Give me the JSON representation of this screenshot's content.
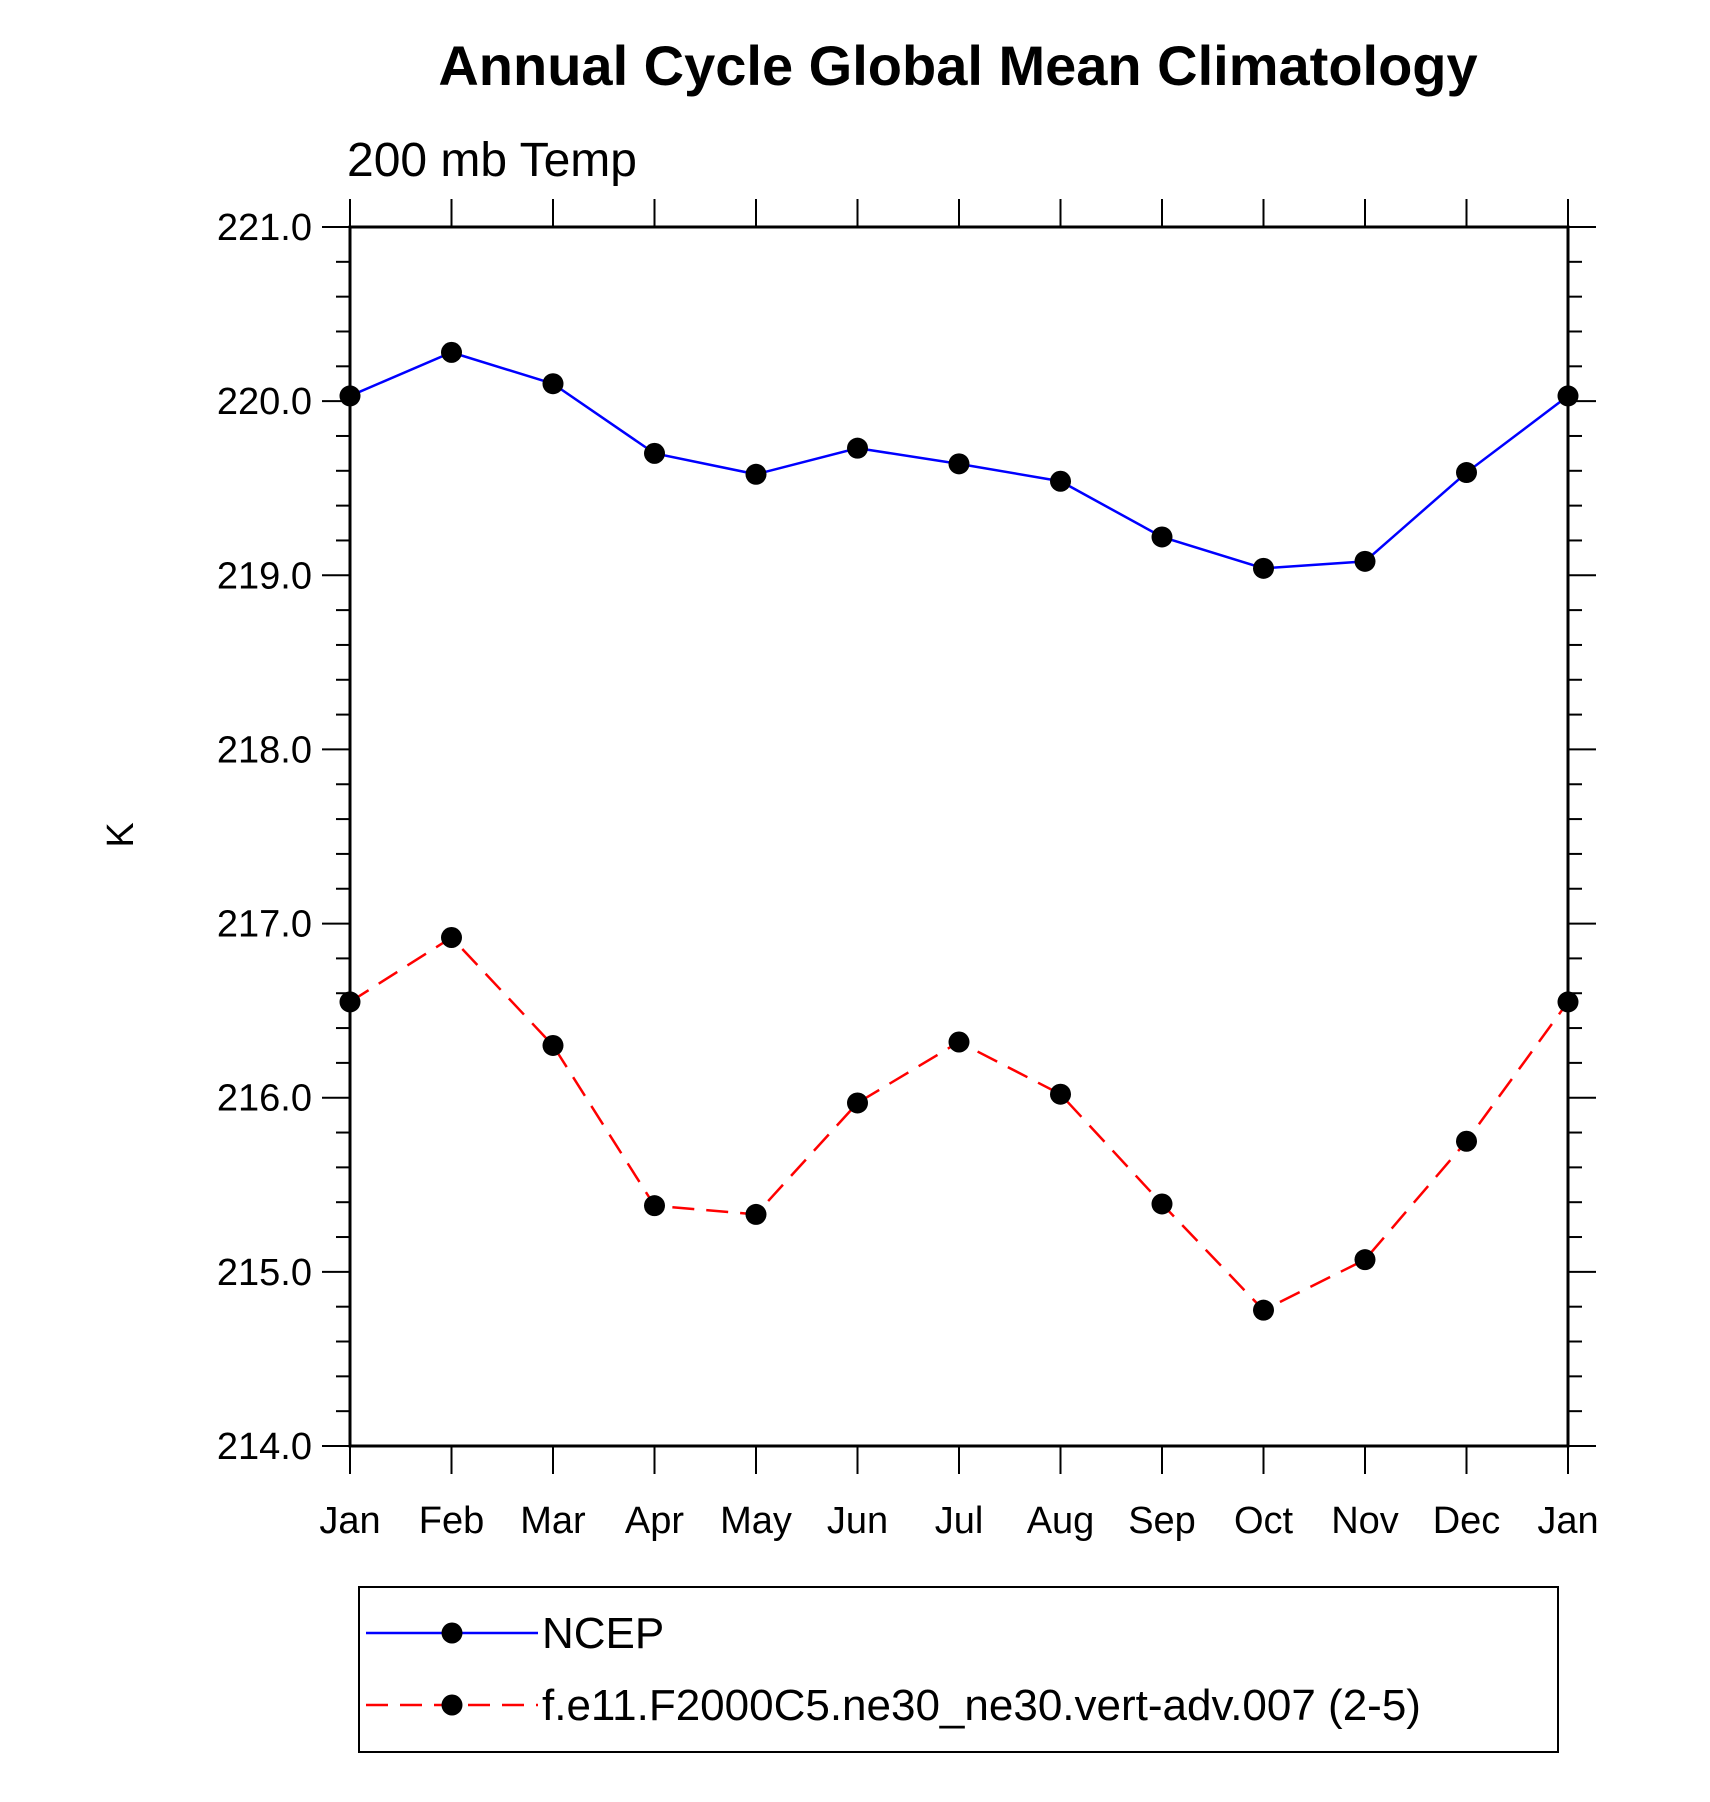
{
  "chart_data": {
    "type": "line",
    "title": "Annual Cycle Global Mean Climatology",
    "subtitle": "200 mb Temp",
    "xlabel": "",
    "ylabel": "K",
    "categories": [
      "Jan",
      "Feb",
      "Mar",
      "Apr",
      "May",
      "Jun",
      "Jul",
      "Aug",
      "Sep",
      "Oct",
      "Nov",
      "Dec",
      "Jan"
    ],
    "ylim": [
      214.0,
      221.0
    ],
    "yticks": [
      "214.0",
      "215.0",
      "216.0",
      "217.0",
      "218.0",
      "219.0",
      "220.0",
      "221.0"
    ],
    "grid": false,
    "legend_position": "bottom",
    "series": [
      {
        "name": "NCEP",
        "color": "#0000ff",
        "style": "solid",
        "marker": "filled-circle",
        "values": [
          220.03,
          220.28,
          220.1,
          219.7,
          219.58,
          219.73,
          219.64,
          219.54,
          219.22,
          219.04,
          219.08,
          219.59,
          220.03
        ]
      },
      {
        "name": "f.e11.F2000C5.ne30_ne30.vert-adv.007 (2-5)",
        "color": "#ff0000",
        "style": "dashed",
        "marker": "filled-circle",
        "values": [
          216.55,
          216.92,
          216.3,
          215.38,
          215.33,
          215.97,
          216.32,
          216.02,
          215.39,
          214.78,
          215.07,
          215.75,
          216.55
        ]
      }
    ]
  }
}
